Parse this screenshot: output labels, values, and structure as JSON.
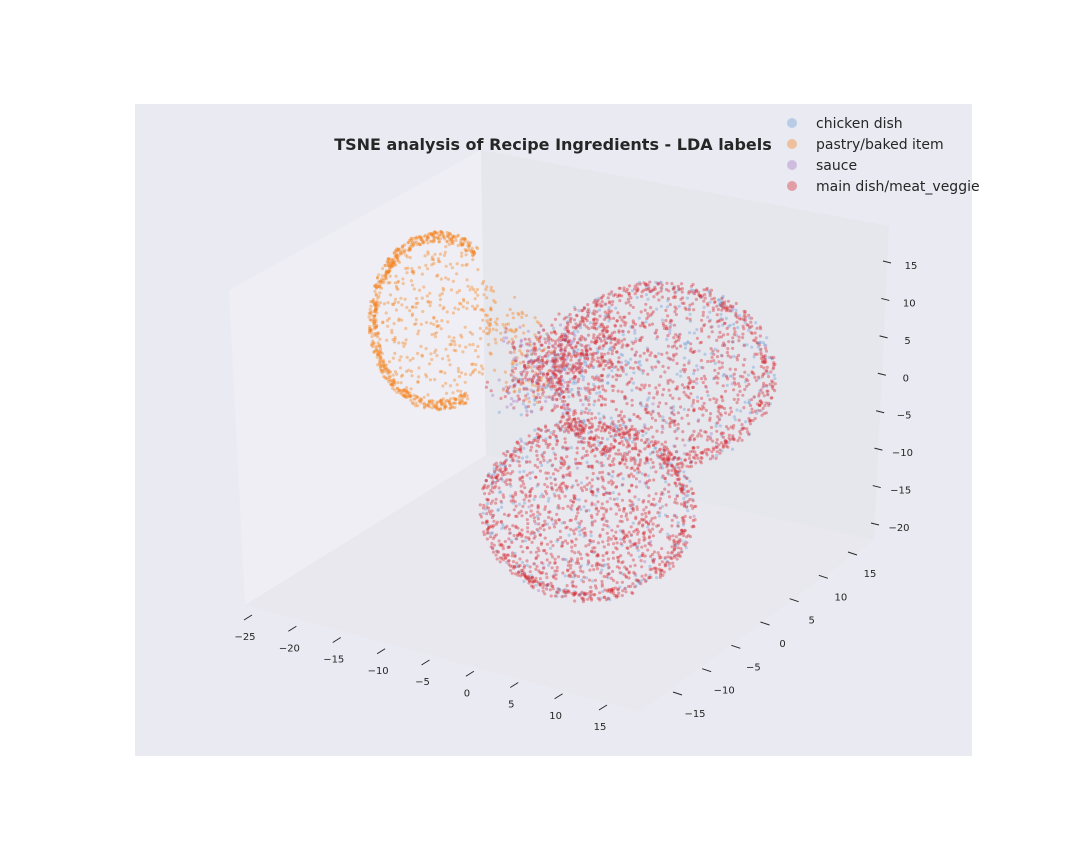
{
  "chart_data": {
    "type": "scatter",
    "projection": "3d",
    "title": "TSNE analysis of Recipe Ingredients - LDA labels",
    "xlabel": "",
    "ylabel": "",
    "zlabel": "",
    "x_ticks": [
      "−25",
      "−20",
      "−15",
      "−10",
      "−5",
      "0",
      "5",
      "10",
      "15"
    ],
    "y_ticks": [
      "−15",
      "−10",
      "−5",
      "0",
      "5",
      "10",
      "15"
    ],
    "z_ticks": [
      "−20",
      "−15",
      "−10",
      "−5",
      "0",
      "5",
      "10",
      "15"
    ],
    "xlim": [
      -25,
      15
    ],
    "ylim": [
      -15,
      15
    ],
    "zlim": [
      -20,
      15
    ],
    "grid": true,
    "legend_position": "top-right",
    "point_alpha": 0.4,
    "series": [
      {
        "name": "chicken dish",
        "color": "#6f9fd8",
        "cluster": "main",
        "count": 700
      },
      {
        "name": "pastry/baked item",
        "color": "#f5811f",
        "cluster": "pastry",
        "count": 1000
      },
      {
        "name": "sauce",
        "color": "#a57bc4",
        "cluster": "sauce",
        "count": 220
      },
      {
        "name": "main dish/meat_veggie",
        "color": "#d62a33",
        "cluster": "main",
        "count": 3000
      }
    ]
  }
}
